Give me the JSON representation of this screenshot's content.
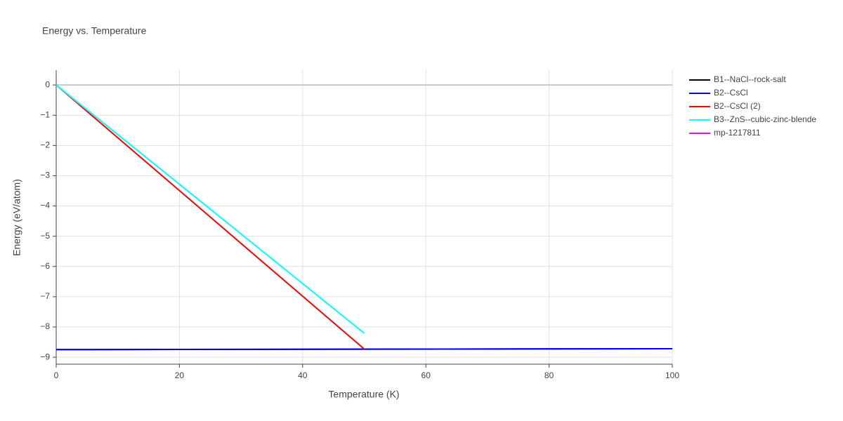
{
  "chart_data": {
    "type": "line",
    "title": "Energy vs. Temperature",
    "x_label": "Temperature (K)",
    "y_label": "Energy (eV/atom)",
    "xlim": [
      0,
      100
    ],
    "ylim": [
      -9.23,
      0.49
    ],
    "xticks": [
      0,
      20,
      40,
      60,
      80,
      100
    ],
    "yticks": [
      0,
      {
        "value": -1,
        "label": "−1"
      },
      {
        "value": -2,
        "label": "−2"
      },
      {
        "value": -3,
        "label": "−3"
      },
      {
        "value": -4,
        "label": "−4"
      },
      {
        "value": -5,
        "label": "−5"
      },
      {
        "value": -6,
        "label": "−6"
      },
      {
        "value": -7,
        "label": "−7"
      },
      {
        "value": -8,
        "label": "−8"
      },
      {
        "value": -9,
        "label": "−9"
      }
    ],
    "grid": true,
    "legend": "right",
    "series": [
      {
        "name": "B1--NaCl--rock-salt",
        "color": "#000000",
        "x": [
          0,
          100
        ],
        "values": [
          -8.75,
          -8.72
        ]
      },
      {
        "name": "B2--CsCl",
        "color": "#0000ff",
        "x": [
          0,
          100
        ],
        "values": [
          -8.75,
          -8.72
        ]
      },
      {
        "name": "B2--CsCl (2)",
        "color": "#ff0000",
        "x": [
          0,
          50
        ],
        "values": [
          0,
          -8.73
        ]
      },
      {
        "name": "B3--ZnS--cubic-zinc-blende",
        "color": "#00ffff",
        "x": [
          0,
          50
        ],
        "values": [
          0,
          -8.21
        ]
      },
      {
        "name": "mp-1217811",
        "color": "#ff00ff",
        "x": [
          0
        ],
        "values": [
          0
        ]
      }
    ]
  }
}
